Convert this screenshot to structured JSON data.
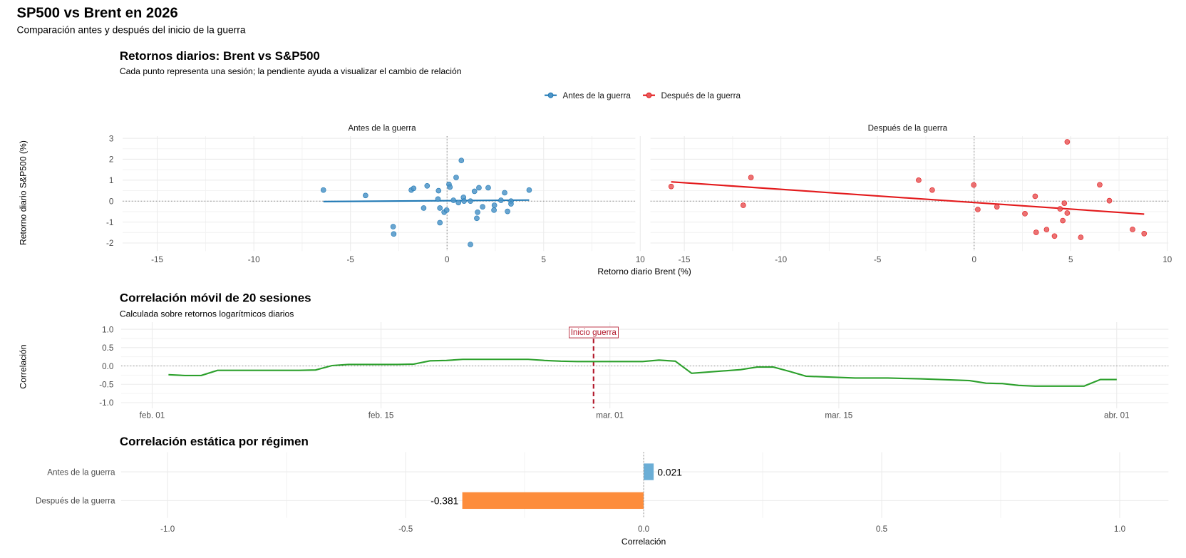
{
  "title": "SP500 vs Brent en 2026",
  "subtitle": "Comparación antes y después del inicio de la guerra",
  "colors": {
    "antes": "#1f78b4",
    "despues": "#e31a1c",
    "antes_point": "#4f95c8",
    "despues_point": "#e8595b",
    "rolling": "#2ca02c",
    "event": "#b2182b",
    "bar_antes": "#6baed6",
    "bar_despues": "#fd8d3c"
  },
  "chart_data": [
    {
      "type": "scatter",
      "title": "Retornos diarios: Brent vs S&P500",
      "subtitle": "Cada punto representa una sesión; la pendiente ayuda a visualizar el cambio de relación",
      "xlabel": "Retorno diario Brent (%)",
      "ylabel": "Retorno diario S&P500 (%)",
      "xlim": [
        -17,
        10
      ],
      "ylim": [
        -2.3,
        3.1
      ],
      "xticks": [
        "-15",
        "-10",
        "-5",
        "0",
        "5",
        "10"
      ],
      "yticks": [
        "3",
        "2",
        "1",
        "0",
        "-1",
        "-2"
      ],
      "grid": true,
      "legend": {
        "position": "top",
        "entries": [
          "Antes de la guerra",
          "Después de la guerra"
        ]
      },
      "series": [
        {
          "name": "Antes de la guerra",
          "points": [
            [
              -6.4,
              0.53
            ],
            [
              -4.22,
              0.27
            ],
            [
              -2.79,
              -1.22
            ],
            [
              -2.76,
              -1.57
            ],
            [
              -1.85,
              0.53
            ],
            [
              -1.73,
              0.61
            ],
            [
              -1.21,
              -0.33
            ],
            [
              -1.03,
              0.73
            ],
            [
              -0.47,
              0.1
            ],
            [
              -0.44,
              0.5
            ],
            [
              -0.37,
              -0.33
            ],
            [
              -0.37,
              -1.03
            ],
            [
              -0.15,
              -0.53
            ],
            [
              -0.02,
              -0.43
            ],
            [
              0.1,
              0.8
            ],
            [
              0.15,
              0.67
            ],
            [
              0.33,
              0.04
            ],
            [
              0.47,
              1.13
            ],
            [
              0.59,
              -0.07
            ],
            [
              0.74,
              1.94
            ],
            [
              0.85,
              0.18
            ],
            [
              0.88,
              0.0
            ],
            [
              1.21,
              0.0
            ],
            [
              1.21,
              -2.07
            ],
            [
              1.42,
              0.47
            ],
            [
              1.54,
              -0.82
            ],
            [
              1.58,
              -0.53
            ],
            [
              1.65,
              0.64
            ],
            [
              1.84,
              -0.27
            ],
            [
              2.13,
              0.64
            ],
            [
              2.43,
              -0.43
            ],
            [
              2.45,
              -0.2
            ],
            [
              2.79,
              0.04
            ],
            [
              2.98,
              0.4
            ],
            [
              3.13,
              -0.49
            ],
            [
              3.31,
              0.0
            ],
            [
              3.31,
              -0.13
            ],
            [
              4.25,
              0.53
            ]
          ],
          "fit": [
            [
              -6.4,
              -0.02
            ],
            [
              4.25,
              0.05
            ]
          ]
        },
        {
          "name": "Después de la guerra",
          "points": [
            [
              -15.68,
              0.7
            ],
            [
              -11.95,
              -0.2
            ],
            [
              -11.55,
              1.13
            ],
            [
              -2.87,
              1.0
            ],
            [
              -2.17,
              0.53
            ],
            [
              -0.02,
              0.77
            ],
            [
              0.19,
              -0.4
            ],
            [
              1.18,
              -0.27
            ],
            [
              2.63,
              -0.6
            ],
            [
              3.16,
              0.23
            ],
            [
              3.21,
              -1.49
            ],
            [
              3.75,
              -1.36
            ],
            [
              4.16,
              -1.67
            ],
            [
              4.45,
              -0.37
            ],
            [
              4.59,
              -0.93
            ],
            [
              4.67,
              -0.1
            ],
            [
              4.82,
              -0.57
            ],
            [
              4.82,
              2.83
            ],
            [
              5.52,
              -1.73
            ],
            [
              6.5,
              0.78
            ],
            [
              7.0,
              0.02
            ],
            [
              8.2,
              -1.35
            ],
            [
              8.8,
              -1.55
            ]
          ],
          "fit": [
            [
              -15.68,
              0.92
            ],
            [
              8.8,
              -0.62
            ]
          ]
        }
      ]
    },
    {
      "type": "line",
      "title": "Correlación móvil de 20 sesiones",
      "subtitle": "Calculada sobre retornos logarítmicos diarios",
      "xlabel": "",
      "ylabel": "Correlación",
      "ylim": [
        -1,
        1
      ],
      "yticks": [
        "1.0",
        "0.5",
        "0.0",
        "-0.5",
        "-1.0"
      ],
      "xticks": [
        {
          "date": "2026-02-01",
          "label": "feb. 01"
        },
        {
          "date": "2026-02-15",
          "label": "feb. 15"
        },
        {
          "date": "2026-03-01",
          "label": "mar. 01"
        },
        {
          "date": "2026-03-15",
          "label": "mar. 15"
        },
        {
          "date": "2026-04-01",
          "label": "abr. 01"
        }
      ],
      "grid": true,
      "annotation": {
        "date": "2026-02-28",
        "label": "Inicio guerra"
      },
      "x": [
        "2026-02-02",
        "2026-02-03",
        "2026-02-04",
        "2026-02-05",
        "2026-02-06",
        "2026-02-09",
        "2026-02-10",
        "2026-02-11",
        "2026-02-12",
        "2026-02-13",
        "2026-02-16",
        "2026-02-17",
        "2026-02-18",
        "2026-02-19",
        "2026-02-20",
        "2026-02-23",
        "2026-02-24",
        "2026-02-25",
        "2026-02-26",
        "2026-02-27",
        "2026-03-02",
        "2026-03-03",
        "2026-03-04",
        "2026-03-05",
        "2026-03-06",
        "2026-03-09",
        "2026-03-10",
        "2026-03-11",
        "2026-03-12",
        "2026-03-13",
        "2026-03-16",
        "2026-03-17",
        "2026-03-18",
        "2026-03-19",
        "2026-03-20",
        "2026-03-23",
        "2026-03-24",
        "2026-03-25",
        "2026-03-26",
        "2026-03-27",
        "2026-03-30",
        "2026-03-31",
        "2026-04-01"
      ],
      "values": [
        -0.24,
        -0.26,
        -0.26,
        -0.12,
        -0.12,
        -0.12,
        -0.12,
        -0.11,
        0.01,
        0.04,
        0.04,
        0.05,
        0.14,
        0.15,
        0.18,
        0.18,
        0.18,
        0.15,
        0.13,
        0.12,
        0.12,
        0.12,
        0.16,
        0.13,
        -0.2,
        -0.1,
        -0.03,
        -0.03,
        -0.15,
        -0.28,
        -0.33,
        -0.33,
        -0.33,
        -0.34,
        -0.35,
        -0.4,
        -0.47,
        -0.48,
        -0.53,
        -0.55,
        -0.55,
        -0.37,
        -0.37
      ]
    },
    {
      "type": "bar",
      "orientation": "horizontal",
      "title": "Correlación estática por régimen",
      "xlabel": "Correlación",
      "ylabel": "",
      "xlim": [
        -1.1,
        1.1
      ],
      "xticks": [
        "-1.0",
        "-0.5",
        "0.0",
        "0.5",
        "1.0"
      ],
      "categories": [
        "Antes de la guerra",
        "Después de la guerra"
      ],
      "values": [
        0.021,
        -0.381
      ],
      "labels": [
        "0.021",
        "-0.381"
      ],
      "grid": true
    }
  ]
}
